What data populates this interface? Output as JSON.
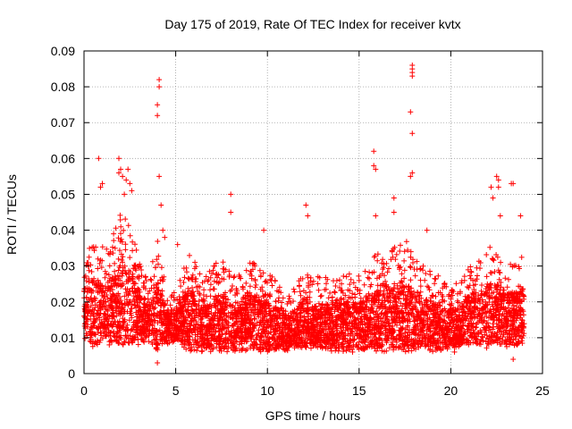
{
  "chart_data": {
    "type": "scatter",
    "title": "Day 175 of 2019, Rate Of TEC Index for receiver kvtx",
    "xlabel": "GPS time / hours",
    "ylabel": "ROTI / TECUs",
    "xlim": [
      0,
      25
    ],
    "ylim": [
      0,
      0.09
    ],
    "xticks": [
      0,
      5,
      10,
      15,
      20,
      25
    ],
    "xtick_labels": [
      "0",
      "5",
      "10",
      "15",
      "20",
      "25"
    ],
    "yticks": [
      0,
      0.01,
      0.02,
      0.03,
      0.04,
      0.05,
      0.06,
      0.07,
      0.08,
      0.09
    ],
    "ytick_labels": [
      "0",
      "0.01",
      "0.02",
      "0.03",
      "0.04",
      "0.05",
      "0.06",
      "0.07",
      "0.08",
      "0.09"
    ],
    "grid": true,
    "marker": "+",
    "series": [
      {
        "name": "ROTI",
        "color": "#ff0000",
        "envelope": {
          "x": [
            0.0,
            0.5,
            1.0,
            1.5,
            2.0,
            2.5,
            3.0,
            3.5,
            4.0,
            4.5,
            5.0,
            5.5,
            6.0,
            6.5,
            7.0,
            7.5,
            8.0,
            8.5,
            9.0,
            9.5,
            10.0,
            10.5,
            11.0,
            11.5,
            12.0,
            12.5,
            13.0,
            13.5,
            14.0,
            14.5,
            15.0,
            15.5,
            16.0,
            16.5,
            17.0,
            17.5,
            18.0,
            18.5,
            19.0,
            19.5,
            20.0,
            20.5,
            21.0,
            21.5,
            22.0,
            22.5,
            23.0,
            23.5,
            24.0
          ],
          "low": [
            0.01,
            0.007,
            0.008,
            0.008,
            0.007,
            0.008,
            0.008,
            0.009,
            0.006,
            0.008,
            0.009,
            0.006,
            0.006,
            0.006,
            0.006,
            0.006,
            0.006,
            0.006,
            0.006,
            0.006,
            0.006,
            0.006,
            0.006,
            0.007,
            0.007,
            0.007,
            0.007,
            0.006,
            0.006,
            0.006,
            0.006,
            0.006,
            0.006,
            0.006,
            0.006,
            0.006,
            0.006,
            0.006,
            0.006,
            0.006,
            0.007,
            0.007,
            0.008,
            0.008,
            0.007,
            0.008,
            0.007,
            0.007,
            0.008
          ],
          "high": [
            0.032,
            0.038,
            0.036,
            0.038,
            0.045,
            0.042,
            0.032,
            0.026,
            0.038,
            0.024,
            0.023,
            0.034,
            0.032,
            0.026,
            0.03,
            0.032,
            0.028,
            0.028,
            0.032,
            0.03,
            0.028,
            0.026,
            0.022,
            0.024,
            0.03,
            0.026,
            0.028,
            0.026,
            0.03,
            0.028,
            0.028,
            0.03,
            0.034,
            0.036,
            0.036,
            0.038,
            0.034,
            0.03,
            0.03,
            0.026,
            0.024,
            0.026,
            0.03,
            0.032,
            0.036,
            0.034,
            0.032,
            0.032,
            0.034
          ]
        },
        "outliers": [
          {
            "x": 0.8,
            "y": 0.06
          },
          {
            "x": 0.9,
            "y": 0.052
          },
          {
            "x": 1.0,
            "y": 0.053
          },
          {
            "x": 1.9,
            "y": 0.06
          },
          {
            "x": 1.9,
            "y": 0.056
          },
          {
            "x": 2.0,
            "y": 0.057
          },
          {
            "x": 2.1,
            "y": 0.055
          },
          {
            "x": 2.2,
            "y": 0.05
          },
          {
            "x": 2.3,
            "y": 0.054
          },
          {
            "x": 2.4,
            "y": 0.057
          },
          {
            "x": 2.5,
            "y": 0.053
          },
          {
            "x": 2.6,
            "y": 0.051
          },
          {
            "x": 4.1,
            "y": 0.082
          },
          {
            "x": 4.1,
            "y": 0.08
          },
          {
            "x": 4.0,
            "y": 0.075
          },
          {
            "x": 4.0,
            "y": 0.072
          },
          {
            "x": 4.1,
            "y": 0.055
          },
          {
            "x": 4.2,
            "y": 0.047
          },
          {
            "x": 4.3,
            "y": 0.04
          },
          {
            "x": 4.4,
            "y": 0.038
          },
          {
            "x": 8.0,
            "y": 0.05
          },
          {
            "x": 8.0,
            "y": 0.045
          },
          {
            "x": 9.8,
            "y": 0.04
          },
          {
            "x": 12.1,
            "y": 0.047
          },
          {
            "x": 12.2,
            "y": 0.044
          },
          {
            "x": 15.8,
            "y": 0.062
          },
          {
            "x": 15.8,
            "y": 0.058
          },
          {
            "x": 15.9,
            "y": 0.057
          },
          {
            "x": 15.9,
            "y": 0.044
          },
          {
            "x": 16.9,
            "y": 0.049
          },
          {
            "x": 16.9,
            "y": 0.045
          },
          {
            "x": 17.9,
            "y": 0.086
          },
          {
            "x": 17.9,
            "y": 0.085
          },
          {
            "x": 17.9,
            "y": 0.084
          },
          {
            "x": 17.9,
            "y": 0.083
          },
          {
            "x": 17.8,
            "y": 0.073
          },
          {
            "x": 17.9,
            "y": 0.067
          },
          {
            "x": 17.9,
            "y": 0.056
          },
          {
            "x": 17.8,
            "y": 0.055
          },
          {
            "x": 18.7,
            "y": 0.04
          },
          {
            "x": 22.2,
            "y": 0.052
          },
          {
            "x": 22.3,
            "y": 0.049
          },
          {
            "x": 22.5,
            "y": 0.055
          },
          {
            "x": 22.6,
            "y": 0.054
          },
          {
            "x": 22.6,
            "y": 0.052
          },
          {
            "x": 22.7,
            "y": 0.044
          },
          {
            "x": 23.3,
            "y": 0.053
          },
          {
            "x": 23.4,
            "y": 0.053
          },
          {
            "x": 23.8,
            "y": 0.044
          },
          {
            "x": 0.0,
            "y": 0.016
          },
          {
            "x": 0.0,
            "y": 0.023
          },
          {
            "x": 5.1,
            "y": 0.036
          },
          {
            "x": 20.2,
            "y": 0.006
          },
          {
            "x": 23.4,
            "y": 0.004
          },
          {
            "x": 4.0,
            "y": 0.003
          }
        ]
      }
    ]
  }
}
